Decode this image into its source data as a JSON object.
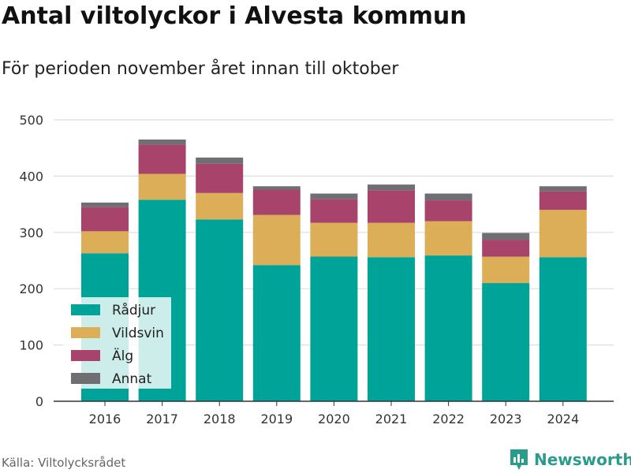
{
  "title": "Antal viltolyckor i Alvesta kommun",
  "subtitle": "För perioden november året innan till oktober",
  "source": "Källa: Viltolycksrådet",
  "brand": {
    "name": "Newsworthy",
    "icon": "bar-chart-logo-icon"
  },
  "colors": {
    "Rådjur": "#00a398",
    "Vildsvin": "#ddae58",
    "Älg": "#a8436b",
    "Annat": "#6e6e73",
    "grid": "#dddddd",
    "axis": "#333333",
    "brand": "#2b9b8c"
  },
  "chart_data": {
    "type": "bar",
    "stacked": true,
    "categories": [
      "2016",
      "2017",
      "2018",
      "2019",
      "2020",
      "2021",
      "2022",
      "2023",
      "2024"
    ],
    "series": [
      {
        "name": "Rådjur",
        "values": [
          263,
          358,
          323,
          242,
          257,
          256,
          259,
          210,
          256
        ]
      },
      {
        "name": "Vildsvin",
        "values": [
          39,
          46,
          47,
          89,
          60,
          61,
          61,
          47,
          84
        ]
      },
      {
        "name": "Älg",
        "values": [
          43,
          52,
          52,
          45,
          42,
          58,
          37,
          30,
          33
        ]
      },
      {
        "name": "Annat",
        "values": [
          8,
          9,
          11,
          6,
          10,
          10,
          12,
          12,
          9
        ]
      }
    ],
    "yticks": [
      "0",
      "100",
      "200",
      "300",
      "400",
      "500"
    ],
    "ylim": [
      0,
      500
    ],
    "grid": true,
    "legend": "bottom-left"
  }
}
